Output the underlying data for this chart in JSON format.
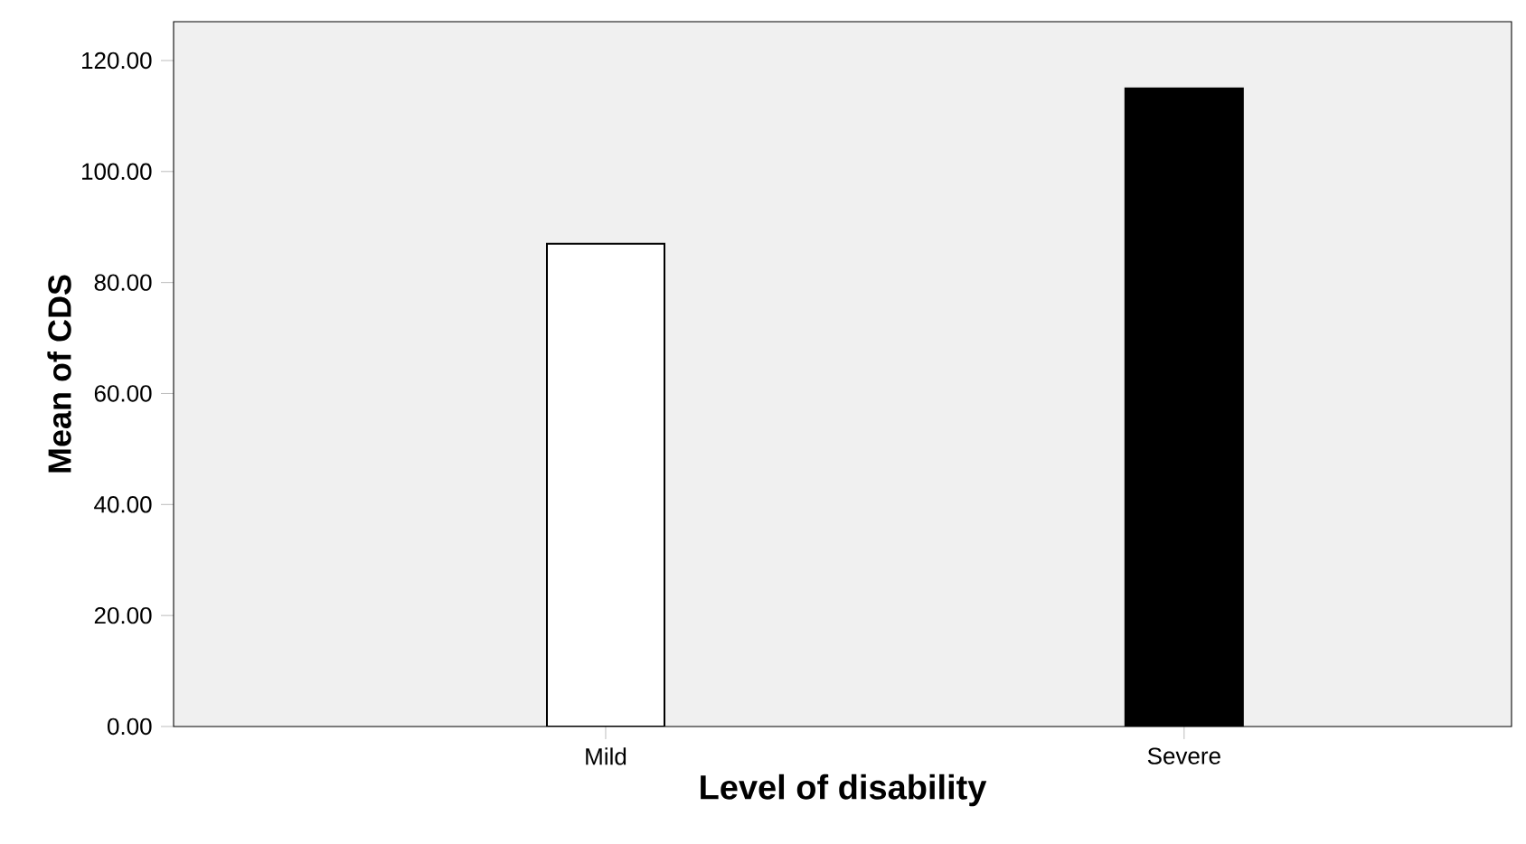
{
  "chart_data": {
    "type": "bar",
    "xlabel": "Level of disability",
    "ylabel": "Mean of CDS",
    "categories": [
      "Mild",
      "Severe"
    ],
    "values": [
      87,
      115
    ],
    "colors": [
      "#ffffff",
      "#000000"
    ],
    "ylim": [
      0,
      127
    ],
    "yticks": [
      {
        "value": 0,
        "label": "0.00"
      },
      {
        "value": 20,
        "label": "20.00"
      },
      {
        "value": 40,
        "label": "40.00"
      },
      {
        "value": 60,
        "label": "60.00"
      },
      {
        "value": 80,
        "label": "80.00"
      },
      {
        "value": 100,
        "label": "100.00"
      },
      {
        "value": 120,
        "label": "120.00"
      }
    ],
    "grid": false
  }
}
